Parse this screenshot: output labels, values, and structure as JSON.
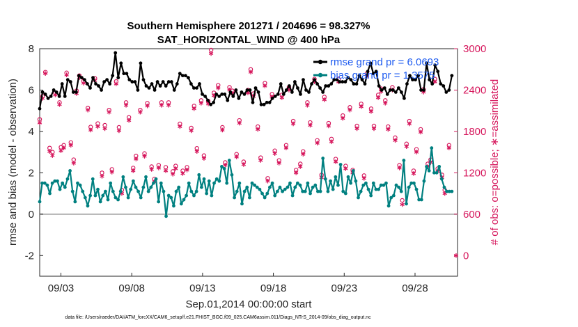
{
  "chart_data": {
    "type": "line",
    "title": "Southern Hemisphere 201271 / 204696 = 98.327%",
    "subtitle": "SAT_HORIZONTAL_WIND @ 400 hPa",
    "xlabel": "Sep.01,2014 00:00:00 start",
    "ylabel_left": "rmse and bias (model - observation)",
    "ylabel_right": "# of obs: o=possible; ∗=assimilated",
    "footnote": "data file: /Users/raeder/DAI/ATM_forcXX/CAM6_setup/f.e21.FHIST_BGC.f09_025.CAM6assim.011/Diags_NTrS_2014-09/obs_diag_output.nc",
    "xlim": [
      1.5,
      31.0
    ],
    "ylim_left": [
      -3,
      8
    ],
    "ylim_right": [
      -300,
      3000
    ],
    "left_ticks": [
      -2,
      0,
      2,
      4,
      6,
      8
    ],
    "right_ticks": [
      0,
      600,
      1200,
      1800,
      2400,
      3000
    ],
    "x_ticks": [
      {
        "x": 3,
        "label": "09/03"
      },
      {
        "x": 8,
        "label": "09/08"
      },
      {
        "x": 13,
        "label": "09/13"
      },
      {
        "x": 18,
        "label": "09/18"
      },
      {
        "x": 23,
        "label": "09/23"
      },
      {
        "x": 28,
        "label": "09/28"
      }
    ],
    "zero_line": 0,
    "legend_position": "top-right",
    "colors": {
      "rmse": "#000000",
      "bias": "#008080",
      "obs": "#d6175c",
      "zero_line": "#b3b3b3",
      "legend_text": "#1f5cf0"
    },
    "series": [
      {
        "name": "rmse grand pr = 6.0693",
        "axis": "left",
        "color": "#000000",
        "values": [
          5.1,
          5.9,
          5.8,
          5.6,
          5.7,
          6.0,
          5.9,
          5.7,
          6.3,
          5.7,
          6.5,
          6.4,
          5.9,
          5.9,
          6.7,
          6.6,
          6.5,
          6.3,
          6.1,
          6.6,
          6.3,
          6.2,
          6.0,
          6.4,
          6.5,
          6.3,
          6.7,
          7.8,
          6.6,
          7.3,
          6.8,
          6.8,
          6.5,
          6.4,
          6.4,
          6.0,
          7.3,
          6.5,
          6.2,
          6.1,
          6.3,
          6.0,
          6.4,
          6.2,
          6.4,
          6.2,
          6.4,
          6.4,
          6.0,
          6.3,
          6.8,
          6.7,
          6.7,
          6.6,
          6.3,
          6.1,
          6.1,
          6.3,
          5.8,
          5.7,
          5.5,
          5.3,
          5.4,
          5.8,
          5.7,
          5.8,
          5.8,
          5.5,
          5.9,
          5.7,
          6.0,
          5.6,
          5.9,
          5.8,
          6.0,
          6.0,
          5.4,
          6.1,
          5.9,
          5.3,
          5.3,
          5.4,
          5.4,
          5.6,
          5.7,
          5.8,
          6.3,
          5.8,
          6.0,
          6.2,
          5.9,
          6.4,
          6.1,
          5.8,
          6.5,
          6.0,
          5.9,
          6.3,
          6.5,
          6.3,
          6.1,
          5.9,
          6.2,
          6.2,
          6.3,
          6.5,
          6.5,
          6.4,
          6.4,
          6.4,
          6.6,
          6.5,
          6.3,
          6.3,
          6.7,
          6.5,
          6.3,
          6.9,
          7.3,
          6.8,
          6.9,
          6.2,
          6.0,
          6.1,
          5.8,
          6.0,
          6.0,
          5.9,
          6.1,
          5.9,
          5.6,
          6.3,
          6.7,
          6.5,
          6.5,
          6.7,
          6.0,
          6.0,
          7.3,
          6.5,
          6.3,
          7.2,
          6.9,
          6.3,
          6.2,
          5.9,
          6.0,
          6.7
        ]
      },
      {
        "name": "bias grand pr = 1.3575",
        "axis": "left",
        "color": "#008080",
        "values": [
          0.6,
          1.5,
          1.5,
          1.4,
          1.0,
          1.5,
          1.6,
          1.6,
          1.2,
          1.5,
          1.3,
          1.7,
          2.1,
          1.1,
          0.6,
          1.5,
          1.4,
          1.1,
          0.8,
          0.4,
          0.9,
          1.7,
          0.9,
          1.2,
          0.6,
          0.9,
          1.1,
          0.7,
          1.5,
          1.1,
          0.8,
          0.7,
          1.1,
          1.8,
          1.3,
          0.8,
          1.2,
          1.6,
          1.3,
          1.1,
          0.8,
          1.3,
          1.8,
          1.1,
          1.3,
          1.5,
          1.7,
          0.6,
          1.5,
          1.1,
          -0.1,
          0.9,
          0.8,
          0.4,
          1.1,
          1.3,
          0.5,
          0.7,
          0.9,
          1.5,
          1.1,
          0.9,
          1.1,
          1.9,
          1.3,
          1.7,
          1.0,
          1.6,
          0.9,
          1.5,
          1.7,
          1.6,
          2.3,
          2.2,
          1.5,
          2.6,
          1.9,
          0.8,
          1.1,
          1.5,
          0.5,
          1.1,
          1.3,
          0.8,
          1.5,
          1.4,
          1.3,
          1.2,
          1.0,
          0.8,
          1.0,
          1.3,
          1.5,
          0.9,
          1.1,
          1.3,
          1.1,
          1.2,
          1.3,
          1.5,
          0.9,
          1.3,
          1.5,
          1.4,
          1.1,
          1.1,
          1.5,
          1.0,
          1.3,
          1.4,
          1.1,
          1.1,
          2.7,
          1.7,
          1.1,
          1.6,
          1.2,
          1.8,
          1.4,
          2.4,
          1.1,
          1.0,
          1.8,
          1.5,
          2.1,
          1.6,
          0.8,
          1.1,
          1.4,
          1.5,
          1.2,
          0.9,
          1.5,
          1.2,
          1.2,
          1.4,
          1.4,
          1.5,
          0.4,
          0.8,
          0.9,
          1.4,
          1.3,
          1.1,
          2.6,
          0.5,
          1.3,
          1.5,
          1.5,
          1.2,
          0.7,
          0.7,
          1.6,
          2.3,
          2.1,
          3.2,
          2.0,
          2.0,
          2.3,
          1.7,
          1.3,
          1.1,
          1.1,
          1.1
        ]
      }
    ],
    "obs_possible": {
      "axis": "right",
      "color": "#d6175c",
      "points": [
        [
          1.5,
          1975
        ],
        [
          1.7,
          2310
        ],
        [
          1.9,
          2660
        ],
        [
          2.2,
          1560
        ],
        [
          2.4,
          1500
        ],
        [
          2.6,
          2360
        ],
        [
          2.9,
          2220
        ],
        [
          3.0,
          1570
        ],
        [
          3.2,
          1600
        ],
        [
          3.4,
          2650
        ],
        [
          3.7,
          1640
        ],
        [
          3.9,
          1390
        ],
        [
          4.1,
          2390
        ],
        [
          4.3,
          2610
        ],
        [
          4.6,
          2530
        ],
        [
          4.9,
          2140
        ],
        [
          5.1,
          1865
        ],
        [
          5.4,
          2570
        ],
        [
          5.6,
          1915
        ],
        [
          5.9,
          1200
        ],
        [
          6.1,
          1890
        ],
        [
          6.4,
          2110
        ],
        [
          6.6,
          1250
        ],
        [
          6.9,
          2525
        ],
        [
          7.1,
          1860
        ],
        [
          7.3,
          950
        ],
        [
          7.6,
          2220
        ],
        [
          7.8,
          2005
        ],
        [
          8.1,
          1270
        ],
        [
          8.3,
          1445
        ],
        [
          8.6,
          2110
        ],
        [
          8.9,
          1480
        ],
        [
          9.1,
          2210
        ],
        [
          9.4,
          1290
        ],
        [
          9.6,
          1110
        ],
        [
          9.9,
          1310
        ],
        [
          10.1,
          2220
        ],
        [
          10.4,
          1280
        ],
        [
          10.6,
          2220
        ],
        [
          10.9,
          1220
        ],
        [
          11.1,
          1300
        ],
        [
          11.4,
          1910
        ],
        [
          11.6,
          1230
        ],
        [
          11.9,
          1280
        ],
        [
          12.2,
          1850
        ],
        [
          12.4,
          2170
        ],
        [
          12.6,
          1555
        ],
        [
          12.9,
          2250
        ],
        [
          13.1,
          1450
        ],
        [
          13.4,
          2240
        ],
        [
          13.6,
          2980
        ],
        [
          13.8,
          2360
        ],
        [
          14.1,
          2470
        ],
        [
          14.4,
          1860
        ],
        [
          14.6,
          1350
        ],
        [
          14.9,
          2440
        ],
        [
          15.1,
          2390
        ],
        [
          15.4,
          1470
        ],
        [
          15.6,
          1960
        ],
        [
          15.9,
          1360
        ],
        [
          16.2,
          2400
        ],
        [
          16.4,
          2700
        ],
        [
          16.6,
          2350
        ],
        [
          16.9,
          1870
        ],
        [
          17.1,
          1420
        ],
        [
          17.4,
          2500
        ],
        [
          17.6,
          1120
        ],
        [
          17.9,
          2340
        ],
        [
          18.1,
          1520
        ],
        [
          18.4,
          1380
        ],
        [
          18.6,
          2330
        ],
        [
          18.9,
          1600
        ],
        [
          19.1,
          2440
        ],
        [
          19.4,
          1950
        ],
        [
          19.6,
          1240
        ],
        [
          19.9,
          1330
        ],
        [
          20.1,
          1510
        ],
        [
          20.4,
          2220
        ],
        [
          20.6,
          1930
        ],
        [
          20.9,
          2560
        ],
        [
          21.1,
          1670
        ],
        [
          21.4,
          1170
        ],
        [
          21.6,
          2300
        ],
        [
          21.9,
          1920
        ],
        [
          22.1,
          1690
        ],
        [
          22.4,
          1400
        ],
        [
          22.6,
          2560
        ],
        [
          22.9,
          2030
        ],
        [
          23.1,
          1300
        ],
        [
          23.4,
          2150
        ],
        [
          23.6,
          1240
        ],
        [
          23.9,
          1880
        ],
        [
          24.2,
          2200
        ],
        [
          24.4,
          1160
        ],
        [
          24.6,
          2640
        ],
        [
          24.9,
          2130
        ],
        [
          25.1,
          1880
        ],
        [
          25.4,
          2330
        ],
        [
          25.6,
          2420
        ],
        [
          25.9,
          2250
        ],
        [
          26.1,
          1870
        ],
        [
          26.4,
          2440
        ],
        [
          26.6,
          1710
        ],
        [
          26.9,
          1310
        ],
        [
          27.1,
          800
        ],
        [
          27.4,
          1620
        ],
        [
          27.6,
          1950
        ],
        [
          27.9,
          1230
        ],
        [
          28.1,
          1540
        ],
        [
          28.4,
          1830
        ],
        [
          28.6,
          2410
        ],
        [
          28.9,
          1330
        ],
        [
          29.1,
          1390
        ],
        [
          29.4,
          2560
        ],
        [
          29.6,
          1260
        ],
        [
          29.9,
          1170
        ],
        [
          30.1,
          950
        ],
        [
          30.4,
          1600
        ]
      ]
    },
    "obs_assimilated": {
      "axis": "right",
      "color": "#d6175c",
      "points": [
        [
          1.5,
          1925
        ],
        [
          1.7,
          2280
        ],
        [
          1.9,
          2640
        ],
        [
          2.2,
          1510
        ],
        [
          2.4,
          1450
        ],
        [
          2.6,
          2330
        ],
        [
          2.9,
          2190
        ],
        [
          3.0,
          1520
        ],
        [
          3.2,
          1560
        ],
        [
          3.4,
          2620
        ],
        [
          3.7,
          1600
        ],
        [
          3.9,
          1340
        ],
        [
          4.1,
          2350
        ],
        [
          4.3,
          2580
        ],
        [
          4.6,
          2500
        ],
        [
          4.9,
          2110
        ],
        [
          5.1,
          1820
        ],
        [
          5.4,
          2540
        ],
        [
          5.6,
          1870
        ],
        [
          5.9,
          1150
        ],
        [
          6.1,
          1840
        ],
        [
          6.4,
          2080
        ],
        [
          6.6,
          1210
        ],
        [
          6.9,
          2490
        ],
        [
          7.1,
          1810
        ],
        [
          7.3,
          900
        ],
        [
          7.6,
          2180
        ],
        [
          7.8,
          1960
        ],
        [
          8.1,
          1230
        ],
        [
          8.3,
          1400
        ],
        [
          8.6,
          2080
        ],
        [
          8.9,
          1440
        ],
        [
          9.1,
          2170
        ],
        [
          9.4,
          1250
        ],
        [
          9.6,
          1070
        ],
        [
          9.9,
          1270
        ],
        [
          10.1,
          2180
        ],
        [
          10.4,
          1230
        ],
        [
          10.6,
          2180
        ],
        [
          10.9,
          1180
        ],
        [
          11.1,
          1260
        ],
        [
          11.4,
          1870
        ],
        [
          11.6,
          1190
        ],
        [
          11.9,
          1240
        ],
        [
          12.2,
          1810
        ],
        [
          12.4,
          2130
        ],
        [
          12.6,
          1510
        ],
        [
          12.9,
          2210
        ],
        [
          13.1,
          1410
        ],
        [
          13.4,
          2200
        ],
        [
          13.6,
          2930
        ],
        [
          13.8,
          2320
        ],
        [
          14.1,
          2430
        ],
        [
          14.4,
          1820
        ],
        [
          14.6,
          1310
        ],
        [
          14.9,
          2400
        ],
        [
          15.1,
          2350
        ],
        [
          15.4,
          1430
        ],
        [
          15.6,
          1920
        ],
        [
          15.9,
          1320
        ],
        [
          16.2,
          2360
        ],
        [
          16.4,
          2660
        ],
        [
          16.6,
          2310
        ],
        [
          16.9,
          1830
        ],
        [
          17.1,
          1380
        ],
        [
          17.4,
          2460
        ],
        [
          17.6,
          1080
        ],
        [
          17.9,
          2300
        ],
        [
          18.1,
          1480
        ],
        [
          18.4,
          1340
        ],
        [
          18.6,
          2290
        ],
        [
          18.9,
          1560
        ],
        [
          19.1,
          2400
        ],
        [
          19.4,
          1910
        ],
        [
          19.6,
          1200
        ],
        [
          19.9,
          1290
        ],
        [
          20.1,
          1470
        ],
        [
          20.4,
          2180
        ],
        [
          20.6,
          1890
        ],
        [
          20.9,
          2520
        ],
        [
          21.1,
          1630
        ],
        [
          21.4,
          1130
        ],
        [
          21.6,
          2260
        ],
        [
          21.9,
          1880
        ],
        [
          22.1,
          1650
        ],
        [
          22.4,
          1360
        ],
        [
          22.6,
          2520
        ],
        [
          22.9,
          1990
        ],
        [
          23.1,
          1260
        ],
        [
          23.4,
          2110
        ],
        [
          23.6,
          1200
        ],
        [
          23.9,
          1840
        ],
        [
          24.2,
          2160
        ],
        [
          24.4,
          1120
        ],
        [
          24.6,
          2600
        ],
        [
          24.9,
          2090
        ],
        [
          25.1,
          1840
        ],
        [
          25.4,
          2290
        ],
        [
          25.6,
          2380
        ],
        [
          25.9,
          2210
        ],
        [
          26.1,
          1830
        ],
        [
          26.4,
          2400
        ],
        [
          26.6,
          1670
        ],
        [
          26.9,
          1270
        ],
        [
          27.1,
          740
        ],
        [
          27.4,
          1580
        ],
        [
          27.6,
          1910
        ],
        [
          27.9,
          1190
        ],
        [
          28.1,
          1500
        ],
        [
          28.4,
          1790
        ],
        [
          28.6,
          2370
        ],
        [
          28.9,
          1290
        ],
        [
          29.1,
          1350
        ],
        [
          29.4,
          2520
        ],
        [
          29.6,
          1220
        ],
        [
          29.9,
          1130
        ],
        [
          30.1,
          900
        ],
        [
          30.4,
          1560
        ],
        [
          30.9,
          0
        ]
      ]
    }
  }
}
